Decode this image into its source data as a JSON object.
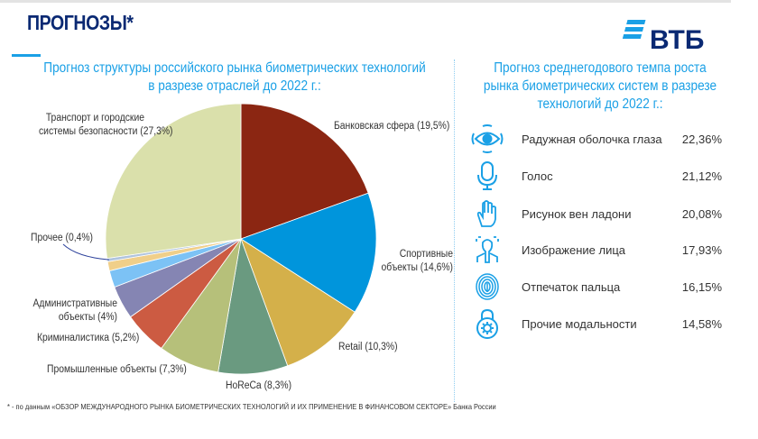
{
  "header": {
    "title": "ПРОГНОЗЫ*",
    "logo_text": "ВТБ"
  },
  "chart_data": {
    "type": "pie",
    "title": "Прогноз структуры российского рынка биометрических технологий в разрезе отраслей до 2022 г.:",
    "title_line1": "Прогноз структуры российского рынка биометрических технологий",
    "title_line2": "в разрезе отраслей до 2022 г.:",
    "unit": "%",
    "slices": [
      {
        "name": "Банковская сфера",
        "value": 19.5,
        "label": "Банковская сфера (19,5%)",
        "color": "#8b2612"
      },
      {
        "name": "Спортивные объекты",
        "value": 14.6,
        "label_l1": "Спортивные",
        "label_l2": "объекты (14,6%)",
        "color": "#0095dc"
      },
      {
        "name": "Retail",
        "value": 10.3,
        "label": "Retail (10,3%)",
        "color": "#d4b04a"
      },
      {
        "name": "HoReCa",
        "value": 8.3,
        "label": "HoReCa (8,3%)",
        "color": "#6a9a80"
      },
      {
        "name": "Промышленные объекты",
        "value": 7.3,
        "label": "Промышленные объекты (7,3%)",
        "color": "#b6c07a"
      },
      {
        "name": "Криминалистика",
        "value": 5.2,
        "label": "Криминалистика (5,2%)",
        "color": "#cc5b42"
      },
      {
        "name": "Административные объекты",
        "value": 4.0,
        "label_l1": "Административные",
        "label_l2": "объекты (4%)",
        "color": "#8585b3"
      },
      {
        "name": "",
        "value": 2.0,
        "color": "#7cc2f5"
      },
      {
        "name": "",
        "value": 1.1,
        "color": "#f0cf8a"
      },
      {
        "name": "Прочее",
        "value": 0.4,
        "label": "Прочее (0,4%)",
        "color": "#b0c4de"
      },
      {
        "name": "Транспорт и городские системы безопасности",
        "value": 27.3,
        "label_l1": "Транспорт и городские",
        "label_l2": "системы безопасности (27,3%)",
        "color": "#dae0ab"
      }
    ]
  },
  "growth": {
    "title_line1": "Прогноз среднегодового темпа роста",
    "title_line2": "рынка биометрических систем в разрезе",
    "title_line3": "технологий до 2022 г.:",
    "items": [
      {
        "icon": "eye-icon",
        "label": "Радужная оболочка глаза",
        "value": "22,36%"
      },
      {
        "icon": "microphone-icon",
        "label": "Голос",
        "value": "21,12%"
      },
      {
        "icon": "hand-icon",
        "label": "Рисунок вен ладони",
        "value": "20,08%"
      },
      {
        "icon": "face-scan-icon",
        "label": "Изображение лица",
        "value": "17,93%"
      },
      {
        "icon": "fingerprint-icon",
        "label": "Отпечаток пальца",
        "value": "16,15%"
      },
      {
        "icon": "lock-gear-icon",
        "label": "Прочие модальности",
        "value": "14,58%"
      }
    ]
  },
  "footer": {
    "note": "* - по данным «ОБЗОР МЕЖДУНАРОДНОГО РЫНКА БИОМЕТРИЧЕСКИХ ТЕХНОЛОГИЙ И ИХ ПРИМЕНЕНИЕ В ФИНАНСОВОМ СЕКТОРЕ» Банка России"
  },
  "colors": {
    "accent": "#1aa0e6",
    "brand": "#0a2973"
  }
}
